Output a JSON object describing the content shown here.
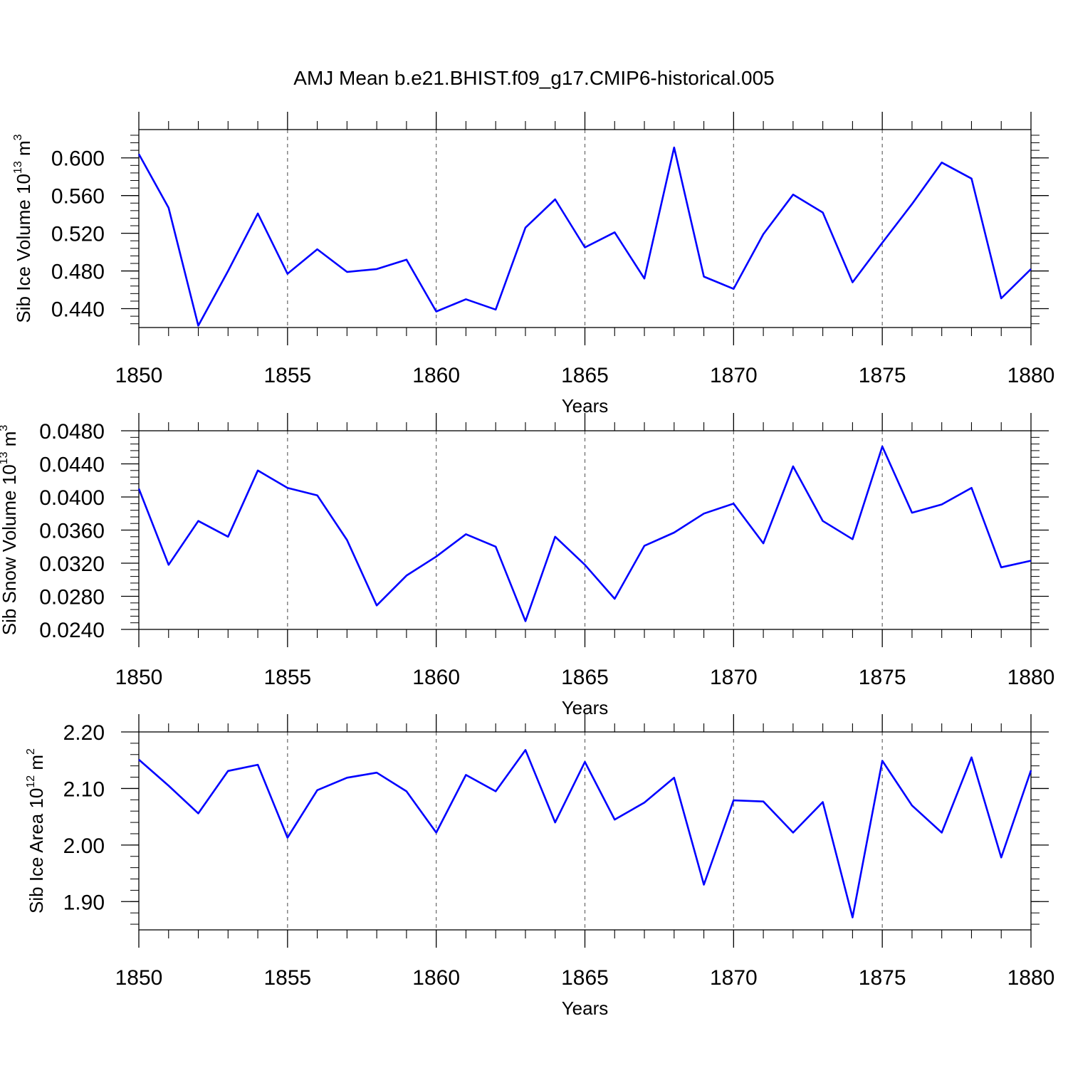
{
  "title": "AMJ Mean b.e21.BHIST.f09_g17.CMIP6-historical.005",
  "colors": {
    "line": "#0000ff",
    "axis": "#000000",
    "grid": "#666666"
  },
  "chart_data": [
    {
      "type": "line",
      "name": "ice-volume",
      "ylabel_main": "Sib Ice Volume 10",
      "ylabel_sup": "13",
      "ylabel_unit": " m",
      "ylabel_unit_sup": "3",
      "xlabel": "Years",
      "xlim": [
        1850,
        1880
      ],
      "ylim": [
        0.42,
        0.63
      ],
      "xticks": [
        "1850",
        "1855",
        "1860",
        "1865",
        "1870",
        "1875",
        "1880"
      ],
      "yticks": [
        "0.440",
        "0.480",
        "0.520",
        "0.560",
        "0.600"
      ],
      "x": [
        1850,
        1851,
        1852,
        1853,
        1854,
        1855,
        1856,
        1857,
        1858,
        1859,
        1860,
        1861,
        1862,
        1863,
        1864,
        1865,
        1866,
        1867,
        1868,
        1869,
        1870,
        1871,
        1872,
        1873,
        1874,
        1875,
        1876,
        1877,
        1878,
        1879,
        1880
      ],
      "values": [
        0.604,
        0.547,
        0.422,
        0.48,
        0.541,
        0.477,
        0.503,
        0.479,
        0.482,
        0.492,
        0.437,
        0.45,
        0.439,
        0.526,
        0.556,
        0.505,
        0.521,
        0.472,
        0.611,
        0.474,
        0.461,
        0.519,
        0.561,
        0.542,
        0.468,
        0.51,
        0.551,
        0.595,
        0.578,
        0.451,
        0.482
      ]
    },
    {
      "type": "line",
      "name": "snow-volume",
      "ylabel_main": "Sib Snow Volume 10",
      "ylabel_sup": "13",
      "ylabel_unit": " m",
      "ylabel_unit_sup": "3",
      "xlabel": "Years",
      "xlim": [
        1850,
        1880
      ],
      "ylim": [
        0.024,
        0.048
      ],
      "xticks": [
        "1850",
        "1855",
        "1860",
        "1865",
        "1870",
        "1875",
        "1880"
      ],
      "yticks": [
        "0.0240",
        "0.0280",
        "0.0320",
        "0.0360",
        "0.0400",
        "0.0440",
        "0.0480"
      ],
      "x": [
        1850,
        1851,
        1852,
        1853,
        1854,
        1855,
        1856,
        1857,
        1858,
        1859,
        1860,
        1861,
        1862,
        1863,
        1864,
        1865,
        1866,
        1867,
        1868,
        1869,
        1870,
        1871,
        1872,
        1873,
        1874,
        1875,
        1876,
        1877,
        1878,
        1879,
        1880
      ],
      "values": [
        0.041,
        0.0318,
        0.0371,
        0.0352,
        0.0432,
        0.0411,
        0.0402,
        0.0348,
        0.0269,
        0.0305,
        0.0328,
        0.0355,
        0.034,
        0.025,
        0.0352,
        0.0318,
        0.0277,
        0.0341,
        0.0357,
        0.038,
        0.0392,
        0.0344,
        0.0437,
        0.0371,
        0.0349,
        0.0461,
        0.0381,
        0.0391,
        0.0411,
        0.0315,
        0.0323
      ]
    },
    {
      "type": "line",
      "name": "ice-area",
      "ylabel_main": "Sib Ice Area 10",
      "ylabel_sup": "12",
      "ylabel_unit": " m",
      "ylabel_unit_sup": "2",
      "xlabel": "Years",
      "xlim": [
        1850,
        1880
      ],
      "ylim": [
        1.85,
        2.2
      ],
      "xticks": [
        "1850",
        "1855",
        "1860",
        "1865",
        "1870",
        "1875",
        "1880"
      ],
      "yticks": [
        "1.90",
        "2.00",
        "2.10",
        "2.20"
      ],
      "x": [
        1850,
        1851,
        1852,
        1853,
        1854,
        1855,
        1856,
        1857,
        1858,
        1859,
        1860,
        1861,
        1862,
        1863,
        1864,
        1865,
        1866,
        1867,
        1868,
        1869,
        1870,
        1871,
        1872,
        1873,
        1874,
        1875,
        1876,
        1877,
        1878,
        1879,
        1880
      ],
      "values": [
        2.151,
        2.105,
        2.056,
        2.131,
        2.142,
        2.013,
        2.097,
        2.119,
        2.128,
        2.095,
        2.022,
        2.124,
        2.095,
        2.168,
        2.04,
        2.147,
        2.045,
        2.075,
        2.119,
        1.93,
        2.079,
        2.077,
        2.022,
        2.076,
        1.872,
        2.149,
        2.07,
        2.022,
        2.155,
        1.978,
        2.132
      ]
    }
  ]
}
